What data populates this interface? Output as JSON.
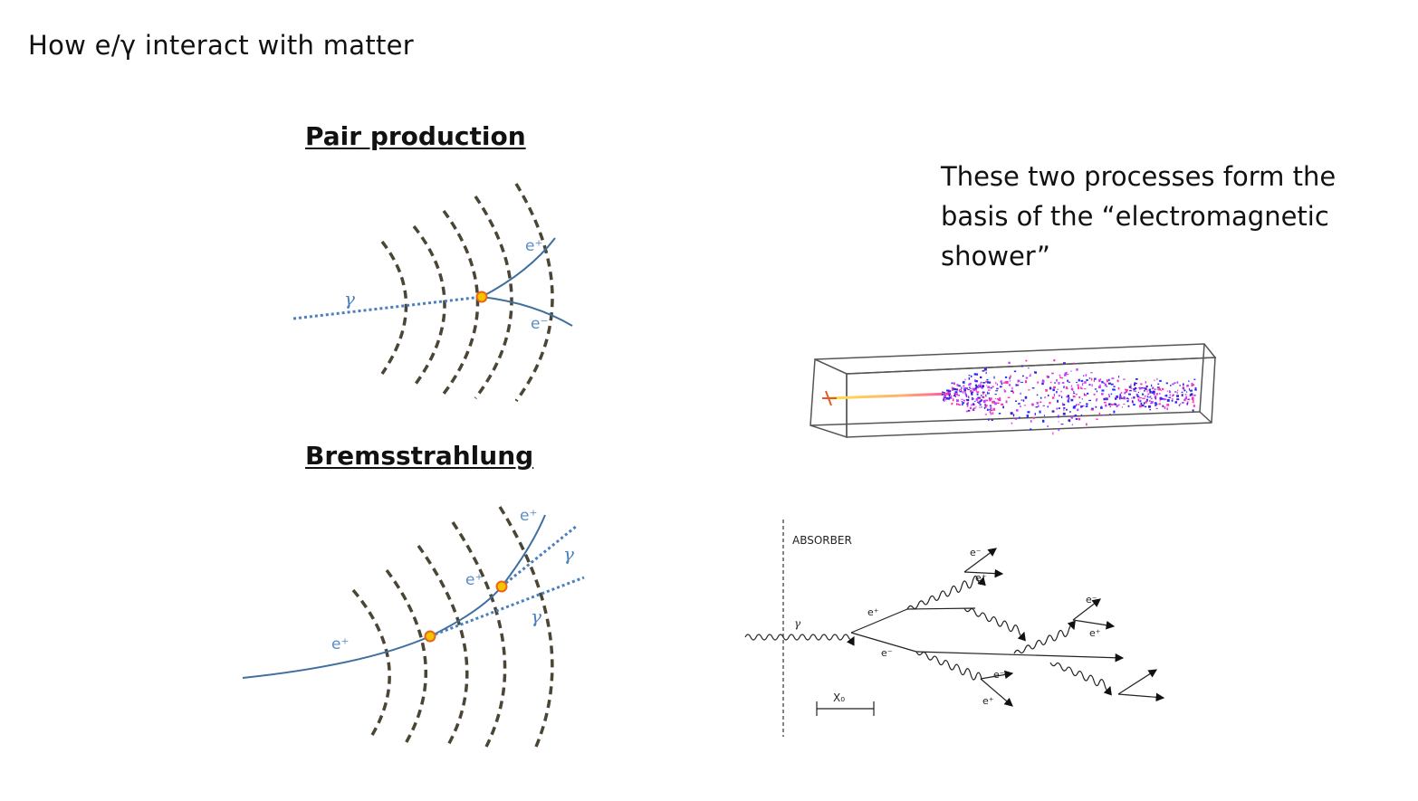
{
  "slide": {
    "title": "How e/γ interact with matter",
    "pair_heading": "Pair production",
    "brems_heading": "Bremsstrahlung",
    "note": "These two processes form the basis of the “electromagnetic shower”"
  },
  "pair_figure": {
    "photon_label": "γ",
    "positron_label": "e⁺",
    "electron_label": "e⁻"
  },
  "brems_figure": {
    "incoming_label": "e⁺",
    "mid_label": "e⁺",
    "outgoing_label": "e⁺",
    "photon1_label": "γ",
    "photon2_label": "γ"
  },
  "cascade_figure": {
    "absorber_label": "ABSORBER",
    "gamma_label": "γ",
    "e_plus": "e⁺",
    "e_minus": "e⁻",
    "x0_label": "X₀"
  },
  "colors": {
    "track": "#3f6f9f",
    "photon": "#4a7fbf",
    "arc": "#4a4534",
    "vertex_fill": "#f5c400",
    "vertex_ring": "#e8661a"
  }
}
